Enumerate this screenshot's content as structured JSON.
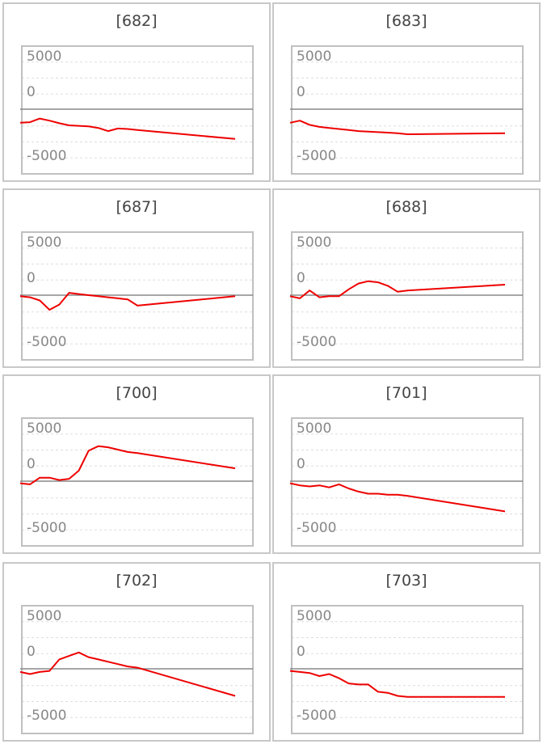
{
  "chart_data": [
    {
      "type": "line",
      "title": "[682]",
      "yticks": [
        5000,
        0,
        -5000
      ],
      "ylim": [
        -5000,
        5000
      ],
      "color": "#ee0000",
      "x": [
        0,
        1,
        2,
        3,
        4,
        5,
        6,
        7,
        8,
        9,
        10,
        11,
        12,
        22
      ],
      "values": [
        -1300,
        -1250,
        -900,
        -1100,
        -1350,
        -1550,
        -1600,
        -1650,
        -1800,
        -2100,
        -1850,
        -1900,
        -2000,
        -2850
      ]
    },
    {
      "type": "line",
      "title": "[683]",
      "yticks": [
        5000,
        0,
        -5000
      ],
      "ylim": [
        -5000,
        5000
      ],
      "color": "#ee0000",
      "x": [
        0,
        1,
        2,
        3,
        4,
        5,
        6,
        7,
        8,
        9,
        10,
        11,
        12,
        22
      ],
      "values": [
        -1300,
        -1100,
        -1500,
        -1700,
        -1800,
        -1900,
        -2000,
        -2100,
        -2150,
        -2200,
        -2250,
        -2300,
        -2400,
        -2300
      ]
    },
    {
      "type": "line",
      "title": "[687]",
      "yticks": [
        5000,
        0,
        -5000
      ],
      "ylim": [
        -5000,
        5000
      ],
      "color": "#ee0000",
      "x": [
        0,
        1,
        2,
        3,
        4,
        5,
        6,
        7,
        8,
        9,
        10,
        11,
        12,
        22
      ],
      "values": [
        -100,
        -200,
        -500,
        -1400,
        -900,
        200,
        100,
        0,
        -100,
        -200,
        -300,
        -400,
        -1000,
        -100
      ]
    },
    {
      "type": "line",
      "title": "[688]",
      "yticks": [
        5000,
        0,
        -5000
      ],
      "ylim": [
        -5000,
        5000
      ],
      "color": "#ee0000",
      "x": [
        0,
        1,
        2,
        3,
        4,
        5,
        6,
        7,
        8,
        9,
        10,
        11,
        12,
        22
      ],
      "values": [
        -100,
        -300,
        400,
        -200,
        -100,
        -100,
        500,
        1000,
        1200,
        1100,
        800,
        300,
        400,
        900
      ]
    },
    {
      "type": "line",
      "title": "[700]",
      "yticks": [
        5000,
        0,
        -5000
      ],
      "ylim": [
        -5000,
        5000
      ],
      "color": "#ee0000",
      "x": [
        0,
        1,
        2,
        3,
        4,
        5,
        6,
        7,
        8,
        9,
        10,
        11,
        12,
        22
      ],
      "values": [
        -200,
        -300,
        300,
        300,
        100,
        200,
        900,
        2600,
        3000,
        2900,
        2700,
        2500,
        2400,
        1100
      ]
    },
    {
      "type": "line",
      "title": "[701]",
      "yticks": [
        5000,
        0,
        -5000
      ],
      "ylim": [
        -5000,
        5000
      ],
      "color": "#ee0000",
      "x": [
        0,
        1,
        2,
        3,
        4,
        5,
        6,
        7,
        8,
        9,
        10,
        11,
        12,
        22
      ],
      "values": [
        -200,
        -400,
        -500,
        -400,
        -600,
        -300,
        -700,
        -1000,
        -1200,
        -1200,
        -1300,
        -1300,
        -1400,
        -2900
      ]
    },
    {
      "type": "line",
      "title": "[702]",
      "yticks": [
        5000,
        0,
        -5000
      ],
      "ylim": [
        -5000,
        5000
      ],
      "color": "#ee0000",
      "x": [
        0,
        1,
        2,
        3,
        4,
        5,
        6,
        7,
        8,
        9,
        10,
        11,
        12,
        22
      ],
      "values": [
        -300,
        -500,
        -300,
        -200,
        800,
        1100,
        1400,
        1000,
        800,
        600,
        400,
        200,
        100,
        -2600
      ]
    },
    {
      "type": "line",
      "title": "[703]",
      "yticks": [
        5000,
        0,
        -5000
      ],
      "ylim": [
        -5000,
        5000
      ],
      "color": "#ee0000",
      "x": [
        0,
        1,
        2,
        3,
        4,
        5,
        6,
        7,
        8,
        9,
        10,
        11,
        12,
        22
      ],
      "values": [
        -200,
        -300,
        -400,
        -700,
        -500,
        -900,
        -1400,
        -1500,
        -1500,
        -2200,
        -2300,
        -2600,
        -2700,
        -2700
      ]
    }
  ]
}
